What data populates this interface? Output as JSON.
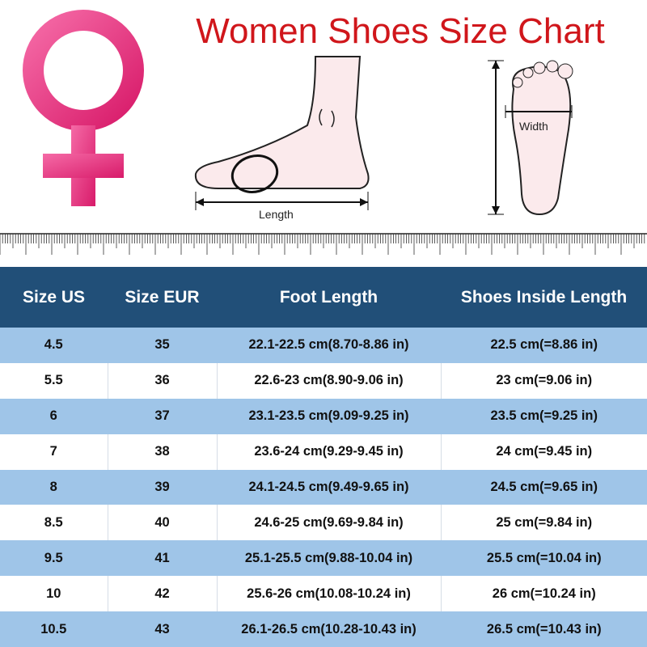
{
  "title": "Women Shoes Size Chart",
  "diagram_labels": {
    "length": "Length",
    "width": "Width"
  },
  "colors": {
    "title": "#d0161b",
    "symbol": "#e8418a",
    "header": "#214f78",
    "row_alt": "#9fc5e8"
  },
  "table": {
    "headers": [
      "Size US",
      "Size EUR",
      "Foot Length",
      "Shoes Inside Length"
    ],
    "rows": [
      [
        "4.5",
        "35",
        "22.1-22.5 cm(8.70-8.86 in)",
        "22.5 cm(=8.86 in)"
      ],
      [
        "5.5",
        "36",
        "22.6-23 cm(8.90-9.06 in)",
        "23 cm(=9.06 in)"
      ],
      [
        "6",
        "37",
        "23.1-23.5 cm(9.09-9.25 in)",
        "23.5 cm(=9.25 in)"
      ],
      [
        "7",
        "38",
        "23.6-24 cm(9.29-9.45 in)",
        "24 cm(=9.45 in)"
      ],
      [
        "8",
        "39",
        "24.1-24.5 cm(9.49-9.65 in)",
        "24.5 cm(=9.65 in)"
      ],
      [
        "8.5",
        "40",
        "24.6-25 cm(9.69-9.84 in)",
        "25 cm(=9.84 in)"
      ],
      [
        "9.5",
        "41",
        "25.1-25.5 cm(9.88-10.04 in)",
        "25.5 cm(=10.04 in)"
      ],
      [
        "10",
        "42",
        "25.6-26 cm(10.08-10.24 in)",
        "26 cm(=10.24 in)"
      ],
      [
        "10.5",
        "43",
        "26.1-26.5 cm(10.28-10.43 in)",
        "26.5 cm(=10.43 in)"
      ]
    ]
  }
}
